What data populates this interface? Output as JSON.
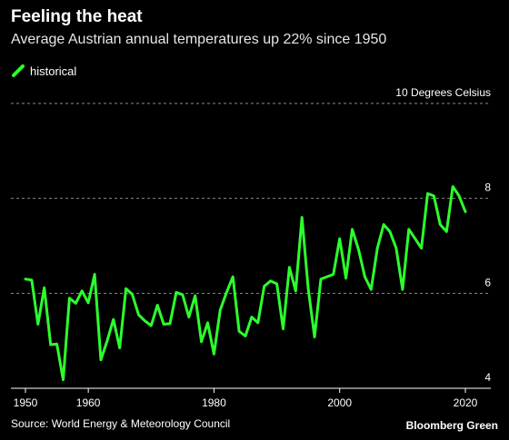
{
  "chart_data": {
    "type": "line",
    "title": "Feeling the heat",
    "subtitle": "Average Austrian annual temperatures up 22% since 1950",
    "ylabel": "10 Degrees Celsius",
    "xlabel": "",
    "source": "Source: World Energy & Meteorology Council",
    "brand": "Bloomberg Green",
    "xlim": [
      1948,
      2024
    ],
    "ylim": [
      4,
      10
    ],
    "x_ticks": [
      1950,
      1960,
      1980,
      2000,
      2020
    ],
    "y_ticks": [
      4,
      6,
      8,
      10
    ],
    "y_tick_labels": [
      "4",
      "6",
      "8",
      ""
    ],
    "grid": true,
    "legend": "top-left",
    "series": [
      {
        "name": "historical",
        "color": "#2dff2d",
        "x": [
          1950,
          1951,
          1952,
          1953,
          1954,
          1955,
          1956,
          1957,
          1958,
          1959,
          1960,
          1961,
          1962,
          1963,
          1964,
          1965,
          1966,
          1967,
          1968,
          1969,
          1970,
          1971,
          1972,
          1973,
          1974,
          1975,
          1976,
          1977,
          1978,
          1979,
          1980,
          1981,
          1982,
          1983,
          1984,
          1985,
          1986,
          1987,
          1988,
          1989,
          1990,
          1991,
          1992,
          1993,
          1994,
          1995,
          1996,
          1997,
          1998,
          1999,
          2000,
          2001,
          2002,
          2003,
          2004,
          2005,
          2006,
          2007,
          2008,
          2009,
          2010,
          2011,
          2012,
          2013,
          2014,
          2015,
          2016,
          2017,
          2018,
          2019,
          2020
        ],
        "values": [
          6.3,
          6.28,
          5.35,
          6.12,
          4.92,
          4.93,
          4.18,
          5.9,
          5.79,
          6.05,
          5.8,
          6.4,
          4.6,
          5.0,
          5.45,
          4.85,
          6.1,
          5.98,
          5.55,
          5.42,
          5.32,
          5.75,
          5.35,
          5.36,
          6.02,
          5.97,
          5.5,
          5.95,
          4.98,
          5.38,
          4.72,
          5.65,
          6.02,
          6.35,
          5.2,
          5.1,
          5.5,
          5.38,
          6.15,
          6.26,
          6.2,
          5.25,
          6.55,
          6.05,
          7.6,
          6.1,
          5.08,
          6.3,
          6.35,
          6.4,
          7.15,
          6.32,
          7.35,
          6.92,
          6.35,
          6.08,
          6.95,
          7.45,
          7.3,
          6.95,
          6.08,
          7.35,
          7.15,
          6.95,
          8.1,
          8.05,
          7.45,
          7.3,
          8.25,
          8.05,
          7.72
        ]
      }
    ]
  }
}
